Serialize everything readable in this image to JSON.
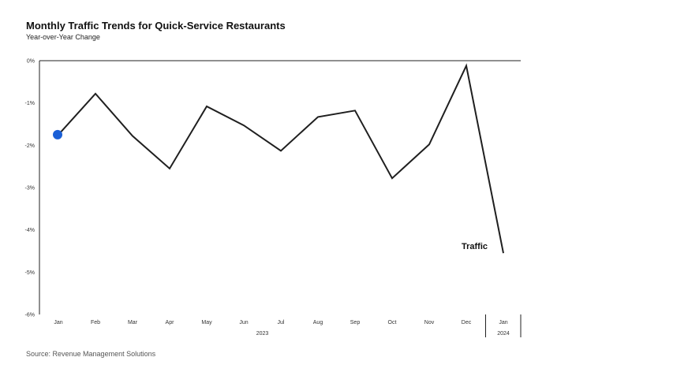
{
  "chart_data": {
    "type": "line",
    "title": "Monthly Traffic Trends for Quick-Service Restaurants",
    "subtitle": "Year-over-Year Change",
    "source": "Source: Revenue Management Solutions",
    "categories": [
      "Jan",
      "Feb",
      "Mar",
      "Apr",
      "May",
      "Jun",
      "Jul",
      "Aug",
      "Sep",
      "Oct",
      "Nov",
      "Dec",
      "Jan"
    ],
    "year_groups": [
      {
        "label": "2023",
        "start": 0,
        "end": 11
      },
      {
        "label": "2024",
        "start": 12,
        "end": 12
      }
    ],
    "series": [
      {
        "name": "Traffic",
        "values": [
          -1.75,
          -0.78,
          -1.78,
          -2.55,
          -1.08,
          -1.53,
          -2.13,
          -1.33,
          -1.18,
          -2.78,
          -1.98,
          -0.12,
          -4.55
        ],
        "color": "#1f1f1f"
      }
    ],
    "start_marker_color": "#1a5fd6",
    "yticks": [
      "0%",
      "-1%",
      "-2%",
      "-3%",
      "-4%",
      "-5%",
      "-6%"
    ],
    "ylim": [
      -6,
      0
    ],
    "grid": false
  }
}
